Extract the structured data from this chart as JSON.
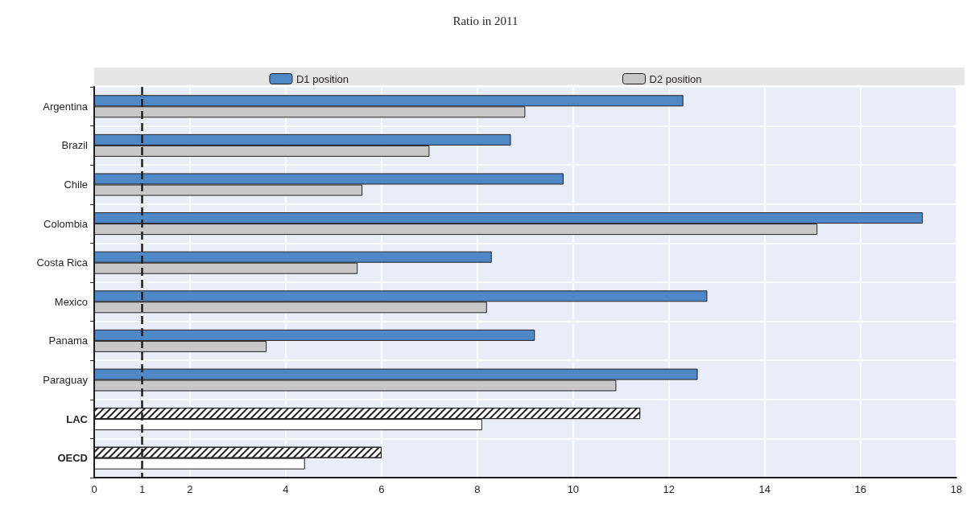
{
  "chart_data": {
    "type": "bar",
    "orientation": "horizontal",
    "subtitle": "Ratio in 2011",
    "categories": [
      "Argentina",
      "Brazil",
      "Chile",
      "Colombia",
      "Costa Rica",
      "Mexico",
      "Panama",
      "Paraguay",
      "LAC",
      "OECD"
    ],
    "series": [
      {
        "name": "D1 position",
        "color": "#4e88c7",
        "colors": [
          "#4e88c7",
          "#4e88c7",
          "#4e88c7",
          "#4e88c7",
          "#4e88c7",
          "#4e88c7",
          "#4e88c7",
          "#4e88c7",
          "#ffffff",
          "#ffffff"
        ],
        "values": [
          12.3,
          8.7,
          9.8,
          17.3,
          8.3,
          12.8,
          9.2,
          12.6,
          11.4,
          6.0
        ]
      },
      {
        "name": "D2 position",
        "color": "#c8c8c8",
        "colors": [
          "#c8c8c8",
          "#c8c8c8",
          "#c8c8c8",
          "#c8c8c8",
          "#c8c8c8",
          "#c8c8c8",
          "#c8c8c8",
          "#c8c8c8",
          "#ffffff",
          "#ffffff"
        ],
        "values": [
          9.0,
          7.0,
          5.6,
          15.1,
          5.5,
          8.2,
          3.6,
          10.9,
          8.1,
          4.4
        ]
      }
    ],
    "xlim": [
      0,
      18
    ],
    "xticks": [
      0,
      1,
      2,
      4,
      6,
      8,
      10,
      12,
      14,
      16,
      18
    ],
    "ref_lines": [
      {
        "axis": "x",
        "value": 1,
        "line_style": "dashed",
        "color": "#231f20"
      }
    ],
    "grid": true,
    "legend": "top"
  }
}
